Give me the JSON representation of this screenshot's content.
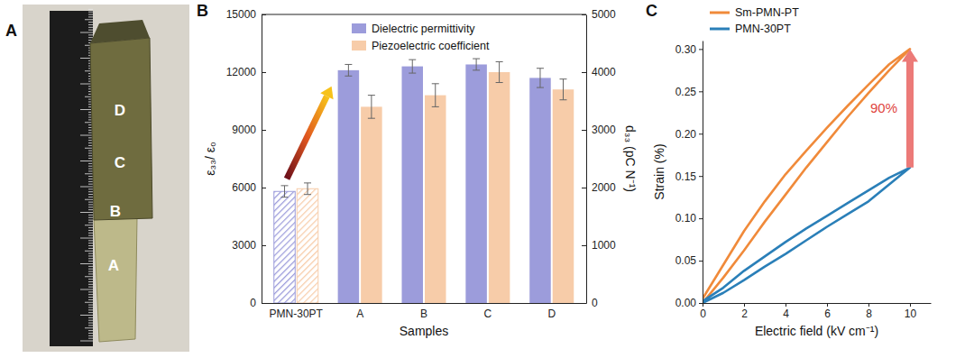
{
  "photo": {
    "title": "A",
    "labels": [
      "D",
      "C",
      "B",
      "A"
    ]
  },
  "chart_data": [
    {
      "type": "bar",
      "title": "B",
      "categories": [
        "PMN-30PT",
        "A",
        "B",
        "C",
        "D"
      ],
      "xlabel": "Samples",
      "ylabel": "ε₃₃/ ε₀",
      "y2label": "d₃₃ (pC N⁻¹)",
      "ylim": [
        0,
        15000
      ],
      "yticks": [
        0,
        3000,
        6000,
        9000,
        12000,
        15000
      ],
      "y2lim": [
        0,
        5000
      ],
      "y2ticks": [
        0,
        1000,
        2000,
        3000,
        4000,
        5000
      ],
      "legend": "upper left",
      "series": [
        {
          "name": "Dielectric permittivity",
          "color": "#9c9cdb",
          "values": [
            5800,
            12100,
            12300,
            12400,
            11700
          ],
          "errors": [
            300,
            300,
            350,
            300,
            500
          ]
        },
        {
          "name": "Piezoelectric coefficient",
          "color": "#f7cca9",
          "axis": "y2",
          "values": [
            1980,
            3400,
            3600,
            4000,
            3700
          ],
          "errors": [
            100,
            200,
            200,
            180,
            180
          ]
        }
      ]
    },
    {
      "type": "line",
      "title": "C",
      "xlabel": "Electric field (kV cm⁻¹)",
      "ylabel": "Strain (%)",
      "x": [
        0,
        1,
        2,
        3,
        4,
        5,
        6,
        7,
        8,
        9,
        10,
        9,
        8,
        7,
        6,
        5,
        4,
        3,
        2,
        1,
        0
      ],
      "xlim": [
        0,
        11
      ],
      "xticks": [
        0,
        2,
        4,
        6,
        8,
        10
      ],
      "ylim": [
        0,
        0.31
      ],
      "yticks": [
        {
          "value": 0,
          "label": "0.00"
        },
        {
          "value": 0.05,
          "label": "0.05"
        },
        {
          "value": 0.1,
          "label": "0.10"
        },
        {
          "value": 0.15,
          "label": "0.15"
        },
        {
          "value": 0.2,
          "label": "0.20"
        },
        {
          "value": 0.25,
          "label": "0.25"
        },
        {
          "value": 0.3,
          "label": "0.30"
        }
      ],
      "legend": "upper left",
      "annotations": [
        {
          "text": "90%"
        }
      ],
      "series": [
        {
          "name": "Sm-PMN-PT",
          "color": "#f08a3a",
          "values": [
            0,
            0.03,
            0.062,
            0.096,
            0.128,
            0.16,
            0.19,
            0.22,
            0.248,
            0.275,
            0.3,
            0.282,
            0.258,
            0.233,
            0.207,
            0.18,
            0.152,
            0.12,
            0.085,
            0.045,
            0.005
          ]
        },
        {
          "name": "PMN-30PT",
          "color": "#2a7fb8",
          "values": [
            0,
            0.012,
            0.027,
            0.043,
            0.058,
            0.074,
            0.09,
            0.105,
            0.12,
            0.14,
            0.16,
            0.148,
            0.133,
            0.118,
            0.103,
            0.088,
            0.072,
            0.055,
            0.038,
            0.018,
            0.002
          ]
        }
      ]
    }
  ]
}
